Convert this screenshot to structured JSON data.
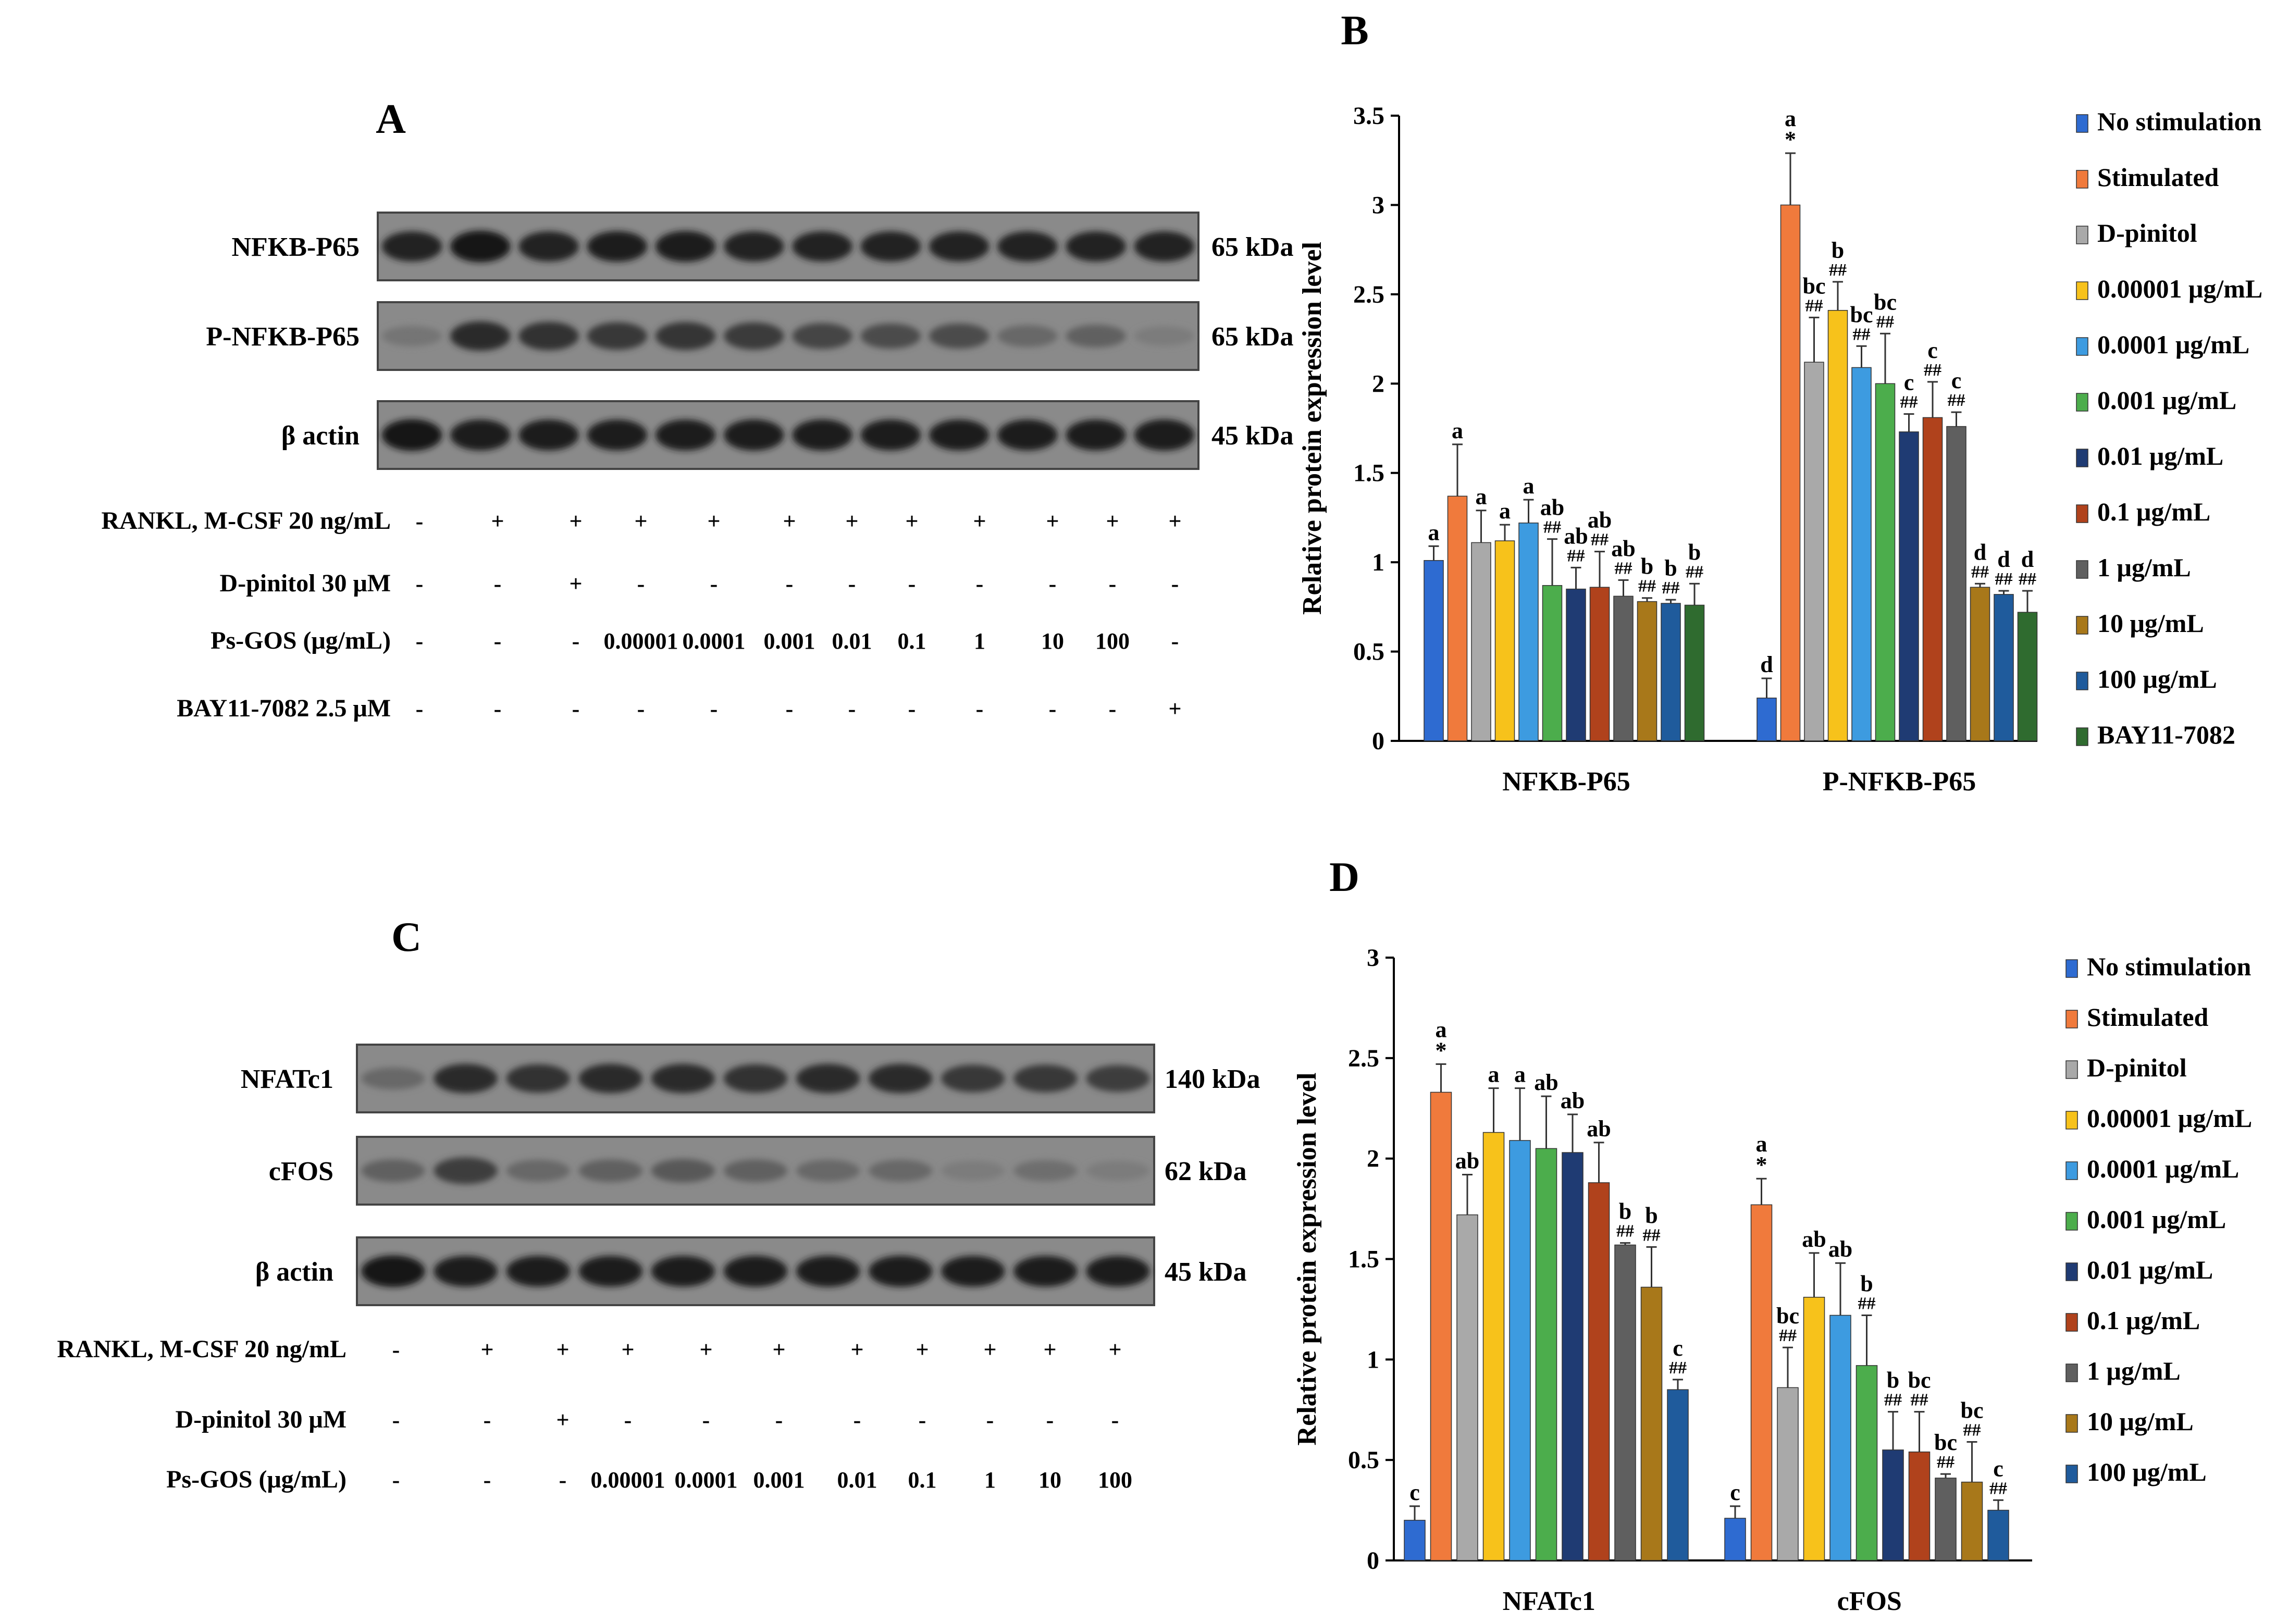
{
  "panel_A": {
    "letter": "A",
    "bands": [
      {
        "label": "NFKB-P65",
        "kda": "65 kDa",
        "intensity": [
          0.85,
          0.95,
          0.85,
          0.88,
          0.9,
          0.85,
          0.85,
          0.85,
          0.85,
          0.85,
          0.85,
          0.85
        ]
      },
      {
        "label": "P-NFKB-P65",
        "kda": "65 kDa",
        "intensity": [
          0.25,
          0.8,
          0.75,
          0.7,
          0.72,
          0.68,
          0.6,
          0.55,
          0.55,
          0.35,
          0.4,
          0.2
        ]
      },
      {
        "label": "β actin",
        "kda": "45 kDa",
        "intensity": [
          0.95,
          0.9,
          0.9,
          0.9,
          0.9,
          0.92,
          0.92,
          0.9,
          0.9,
          0.9,
          0.9,
          0.92
        ]
      }
    ],
    "conditions": [
      {
        "label": "RANKL, M-CSF 20 ng/mL",
        "values": [
          "-",
          "+",
          "+",
          "+",
          "+",
          "+",
          "+",
          "+",
          "+",
          "+",
          "+",
          "+"
        ]
      },
      {
        "label": "D-pinitol 30 μM",
        "values": [
          "-",
          "-",
          "+",
          "-",
          "-",
          "-",
          "-",
          "-",
          "-",
          "-",
          "-",
          "-"
        ]
      },
      {
        "label": "Ps-GOS  (μg/mL)",
        "values": [
          "-",
          "-",
          "-",
          "0.00001",
          "0.0001",
          "0.001",
          "0.01",
          "0.1",
          "1",
          "10",
          "100",
          "-"
        ]
      },
      {
        "label": "BAY11-7082  2.5 μM",
        "values": [
          "-",
          "-",
          "-",
          "-",
          "-",
          "-",
          "-",
          "-",
          "-",
          "-",
          "-",
          "+"
        ]
      }
    ]
  },
  "panel_C": {
    "letter": "C",
    "bands": [
      {
        "label": "NFATc1",
        "kda": "140 kDa",
        "intensity": [
          0.35,
          0.8,
          0.75,
          0.8,
          0.8,
          0.75,
          0.8,
          0.8,
          0.7,
          0.7,
          0.65
        ]
      },
      {
        "label": "cFOS",
        "kda": "62 kDa",
        "intensity": [
          0.4,
          0.65,
          0.35,
          0.4,
          0.45,
          0.4,
          0.35,
          0.35,
          0.2,
          0.3,
          0.2
        ]
      },
      {
        "label": "β actin",
        "kda": "45 kDa",
        "intensity": [
          0.95,
          0.9,
          0.9,
          0.9,
          0.9,
          0.92,
          0.92,
          0.92,
          0.9,
          0.9,
          0.9
        ]
      }
    ],
    "conditions": [
      {
        "label": "RANKL, M-CSF 20 ng/mL",
        "values": [
          "-",
          "+",
          "+",
          "+",
          "+",
          "+",
          "+",
          "+",
          "+",
          "+",
          "+"
        ]
      },
      {
        "label": "D-pinitol 30 μM",
        "values": [
          "-",
          "-",
          "+",
          "-",
          "-",
          "-",
          "-",
          "-",
          "-",
          "-",
          "-"
        ]
      },
      {
        "label": "Ps-GOS  (μg/mL)",
        "values": [
          "-",
          "-",
          "-",
          "0.00001",
          "0.0001",
          "0.001",
          "0.01",
          "0.1",
          "1",
          "10",
          "100"
        ]
      }
    ]
  },
  "colors": {
    "No stimulation": "#2e6bd1",
    "Stimulated": "#f07a3c",
    "D-pinitol": "#a9a9a9",
    "0.00001 μg/mL": "#f7c21b",
    "0.0001 μg/mL": "#3d9be0",
    "0.001 μg/mL": "#4cad4c",
    "0.01 μg/mL": "#1f3b73",
    "0.1 μg/mL": "#b0421c",
    "1 μg/mL": "#5f5f5f",
    "10 μg/mL": "#a8781a",
    "100 μg/mL": "#1f5b9c",
    "BAY11-7082": "#2f6b2f"
  },
  "chart_data": [
    {
      "panel": "B",
      "type": "bar",
      "title": "",
      "ylabel": "Relative protein expression level",
      "xlabel": "",
      "ylim": [
        0,
        3.5
      ],
      "yticks": [
        "0",
        "0.5",
        "1",
        "1.5",
        "2",
        "2.5",
        "3",
        "3.5"
      ],
      "categories": [
        "NFKB-P65",
        "P-NFKB-P65"
      ],
      "legend": [
        "No stimulation",
        "Stimulated",
        "D-pinitol",
        "0.00001 μg/mL",
        "0.0001 μg/mL",
        "0.001 μg/mL",
        "0.01 μg/mL",
        "0.1 μg/mL",
        "1 μg/mL",
        "10 μg/mL",
        "100 μg/mL",
        "BAY11-7082"
      ],
      "series": [
        {
          "name": "No stimulation",
          "values": [
            1.01,
            0.24
          ],
          "errors": [
            0.08,
            0.11
          ],
          "labels": [
            "a",
            "d"
          ]
        },
        {
          "name": "Stimulated",
          "values": [
            1.37,
            3.0
          ],
          "errors": [
            0.29,
            0.29
          ],
          "labels": [
            "a",
            "a *"
          ]
        },
        {
          "name": "D-pinitol",
          "values": [
            1.11,
            2.12
          ],
          "errors": [
            0.18,
            0.25
          ],
          "labels": [
            "a",
            "bc ##"
          ]
        },
        {
          "name": "0.00001 μg/mL",
          "values": [
            1.12,
            2.41
          ],
          "errors": [
            0.09,
            0.16
          ],
          "labels": [
            "a",
            "b ##"
          ]
        },
        {
          "name": "0.0001 μg/mL",
          "values": [
            1.22,
            2.09
          ],
          "errors": [
            0.13,
            0.12
          ],
          "labels": [
            "a",
            "bc ##"
          ]
        },
        {
          "name": "0.001 μg/mL",
          "values": [
            0.87,
            2.0
          ],
          "errors": [
            0.26,
            0.28
          ],
          "labels": [
            "ab ##",
            "bc ##"
          ]
        },
        {
          "name": "0.01 μg/mL",
          "values": [
            0.85,
            1.73
          ],
          "errors": [
            0.12,
            0.1
          ],
          "labels": [
            "ab ##",
            "c ##"
          ]
        },
        {
          "name": "0.1 μg/mL",
          "values": [
            0.86,
            1.81
          ],
          "errors": [
            0.2,
            0.2
          ],
          "labels": [
            "ab ##",
            "c ##"
          ]
        },
        {
          "name": "1 μg/mL",
          "values": [
            0.81,
            1.76
          ],
          "errors": [
            0.09,
            0.08
          ],
          "labels": [
            "ab ##",
            "c ##"
          ]
        },
        {
          "name": "10 μg/mL",
          "values": [
            0.78,
            0.86
          ],
          "errors": [
            0.02,
            0.02
          ],
          "labels": [
            "b ##",
            "d ##"
          ]
        },
        {
          "name": "100 μg/mL",
          "values": [
            0.77,
            0.82
          ],
          "errors": [
            0.02,
            0.02
          ],
          "labels": [
            "b ##",
            "d ##"
          ]
        },
        {
          "name": "BAY11-7082",
          "values": [
            0.76,
            0.72
          ],
          "errors": [
            0.12,
            0.12
          ],
          "labels": [
            "b ##",
            "d ##"
          ]
        }
      ]
    },
    {
      "panel": "D",
      "type": "bar",
      "title": "",
      "ylabel": "Relative protein expression level",
      "xlabel": "",
      "ylim": [
        0,
        3
      ],
      "yticks": [
        "0",
        "0.5",
        "1",
        "1.5",
        "2",
        "2.5",
        "3"
      ],
      "categories": [
        "NFATc1",
        "cFOS"
      ],
      "legend": [
        "No stimulation",
        "Stimulated",
        "D-pinitol",
        "0.00001 μg/mL",
        "0.0001 μg/mL",
        "0.001 μg/mL",
        "0.01 μg/mL",
        "0.1 μg/mL",
        "1 μg/mL",
        "10 μg/mL",
        "100 μg/mL"
      ],
      "series": [
        {
          "name": "No stimulation",
          "values": [
            0.2,
            0.21
          ],
          "errors": [
            0.07,
            0.06
          ],
          "labels": [
            "c",
            "c"
          ]
        },
        {
          "name": "Stimulated",
          "values": [
            2.33,
            1.77
          ],
          "errors": [
            0.14,
            0.13
          ],
          "labels": [
            "a *",
            "a *"
          ]
        },
        {
          "name": "D-pinitol",
          "values": [
            1.72,
            0.86
          ],
          "errors": [
            0.2,
            0.2
          ],
          "labels": [
            "ab",
            "bc ##"
          ]
        },
        {
          "name": "0.00001 μg/mL",
          "values": [
            2.13,
            1.31
          ],
          "errors": [
            0.22,
            0.22
          ],
          "labels": [
            "a",
            "ab"
          ]
        },
        {
          "name": "0.0001 μg/mL",
          "values": [
            2.09,
            1.22
          ],
          "errors": [
            0.26,
            0.26
          ],
          "labels": [
            "a",
            "ab"
          ]
        },
        {
          "name": "0.001 μg/mL",
          "values": [
            2.05,
            0.97
          ],
          "errors": [
            0.26,
            0.25
          ],
          "labels": [
            "ab",
            "b ##"
          ]
        },
        {
          "name": "0.01 μg/mL",
          "values": [
            2.03,
            0.55
          ],
          "errors": [
            0.19,
            0.19
          ],
          "labels": [
            "ab",
            "b ##"
          ]
        },
        {
          "name": "0.1 μg/mL",
          "values": [
            1.88,
            0.54
          ],
          "errors": [
            0.2,
            0.2
          ],
          "labels": [
            "ab",
            "bc ##"
          ]
        },
        {
          "name": "1 μg/mL",
          "values": [
            1.57,
            0.41
          ],
          "errors": [
            0.01,
            0.02
          ],
          "labels": [
            "b ##",
            "bc ##"
          ]
        },
        {
          "name": "10 μg/mL",
          "values": [
            1.36,
            0.39
          ],
          "errors": [
            0.2,
            0.2
          ],
          "labels": [
            "b ##",
            "bc ##"
          ]
        },
        {
          "name": "100 μg/mL",
          "values": [
            0.85,
            0.25
          ],
          "errors": [
            0.05,
            0.05
          ],
          "labels": [
            "c ##",
            "c ##"
          ]
        }
      ]
    }
  ],
  "panel_letters": {
    "B": "B",
    "D": "D"
  }
}
